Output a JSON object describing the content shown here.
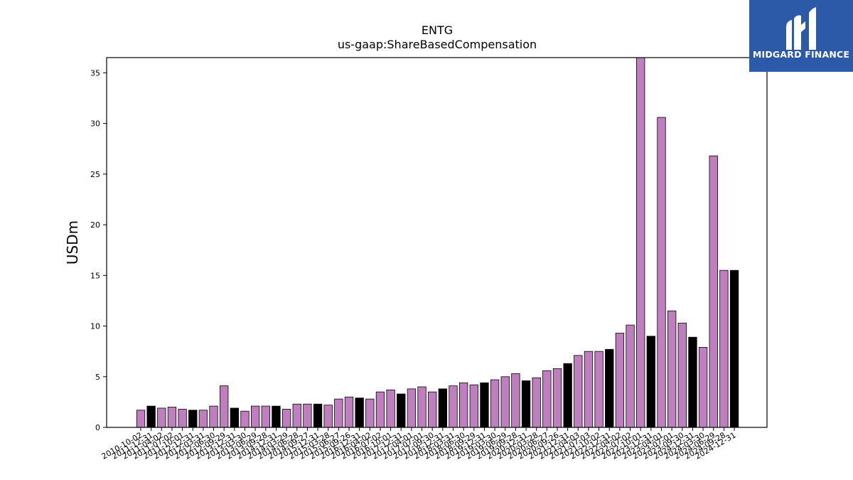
{
  "brand": {
    "name": "MIDGARD FINANCE",
    "logo_icon": "midgard-finance-logo-icon",
    "color": "#2c5aa8"
  },
  "chart_data": {
    "type": "bar",
    "title": "ENTG",
    "subtitle": "us-gaap:ShareBasedCompensation",
    "ylabel": "USDm",
    "xlabel": "",
    "ylim": [
      0,
      36.5
    ],
    "yticks": [
      0,
      5,
      10,
      15,
      20,
      25,
      30,
      35
    ],
    "colors": {
      "quarterly": "#bf7fbf",
      "annual": "#000000"
    },
    "categories": [
      "2010-10-02",
      "2011-12-31",
      "2011-04-02",
      "2011-07-02",
      "2011-10-01",
      "2012-12-31",
      "2012-03-31",
      "2012-06-30",
      "2012-09-29",
      "2013-12-31",
      "2013-03-30",
      "2013-06-29",
      "2013-09-28",
      "2014-12-31",
      "2014-03-29",
      "2014-06-28",
      "2014-09-27",
      "2015-12-31",
      "2015-03-28",
      "2015-06-27",
      "2015-09-26",
      "2016-12-31",
      "2016-04-02",
      "2016-07-02",
      "2016-10-01",
      "2017-12-31",
      "2017-04-01",
      "2017-07-01",
      "2017-09-30",
      "2018-12-31",
      "2018-03-31",
      "2018-06-30",
      "2018-09-29",
      "2019-12-31",
      "2019-03-30",
      "2019-06-29",
      "2019-09-28",
      "2020-12-31",
      "2020-03-28",
      "2020-06-27",
      "2020-09-26",
      "2021-12-31",
      "2021-04-03",
      "2021-07-03",
      "2021-10-02",
      "2022-12-31",
      "2022-04-02",
      "2022-07-02",
      "2022-10-01",
      "2023-12-31",
      "2023-04-01",
      "2023-07-01",
      "2023-09-30",
      "2024-12-31",
      "2024-03-30",
      "2024-06-29",
      "2024-09-28",
      "2024-12-31"
    ],
    "values": [
      1.7,
      2.1,
      1.9,
      2.0,
      1.8,
      1.7,
      1.7,
      2.1,
      4.1,
      1.9,
      1.6,
      2.1,
      2.1,
      2.1,
      1.8,
      2.3,
      2.3,
      2.3,
      2.2,
      2.8,
      3.0,
      2.9,
      2.8,
      3.5,
      3.7,
      3.3,
      3.8,
      4.0,
      3.5,
      3.8,
      4.1,
      4.4,
      4.2,
      4.4,
      4.7,
      5.0,
      5.3,
      4.6,
      4.9,
      5.6,
      5.8,
      6.3,
      7.1,
      7.5,
      7.5,
      7.7,
      9.3,
      10.1,
      36.5,
      9.0,
      30.6,
      11.5,
      10.3,
      8.9,
      7.9,
      26.8,
      15.5,
      15.5
    ],
    "annual": [
      false,
      true,
      false,
      false,
      false,
      true,
      false,
      false,
      false,
      true,
      false,
      false,
      false,
      true,
      false,
      false,
      false,
      true,
      false,
      false,
      false,
      true,
      false,
      false,
      false,
      true,
      false,
      false,
      false,
      true,
      false,
      false,
      false,
      true,
      false,
      false,
      false,
      true,
      false,
      false,
      false,
      true,
      false,
      false,
      false,
      true,
      false,
      false,
      false,
      true,
      false,
      false,
      false,
      true,
      false,
      false,
      false,
      true
    ]
  }
}
